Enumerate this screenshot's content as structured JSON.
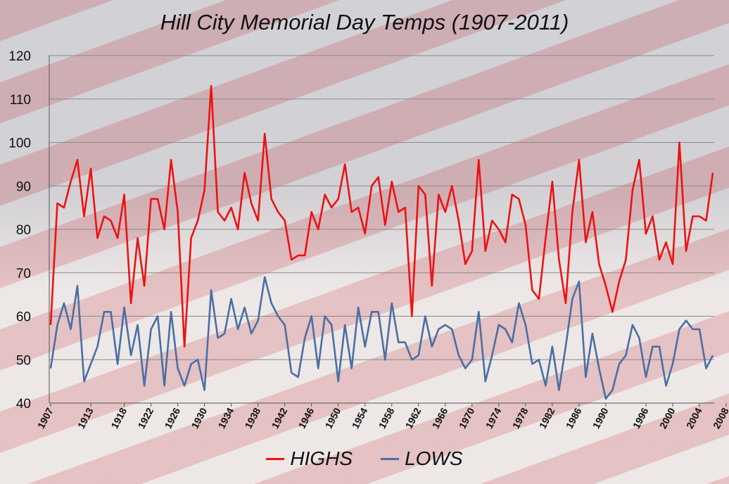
{
  "chart_data": {
    "type": "line",
    "title": "Hill City Memorial Day Temps (1907-2011)",
    "xlabel": "",
    "ylabel": "",
    "ylim": [
      40,
      120
    ],
    "yticks": [
      "40",
      "50",
      "60",
      "70",
      "80",
      "90",
      "100",
      "110",
      "120"
    ],
    "grid": true,
    "legend": "bottom",
    "xtick_labels": [
      "1907",
      "1913",
      "1918",
      "1922",
      "1926",
      "1930",
      "1934",
      "1938",
      "1942",
      "1946",
      "1950",
      "1954",
      "1958",
      "1962",
      "1966",
      "1970",
      "1974",
      "1978",
      "1982",
      "1986",
      "1990",
      "1996",
      "2000",
      "2004",
      "2008"
    ],
    "series": [
      {
        "name": "HIGHS",
        "color": "#ee1111",
        "values": [
          58,
          86,
          85,
          91,
          96,
          83,
          94,
          78,
          83,
          82,
          78,
          88,
          63,
          78,
          67,
          87,
          87,
          80,
          96,
          84,
          53,
          78,
          82,
          89,
          113,
          84,
          82,
          85,
          80,
          93,
          86,
          82,
          102,
          87,
          84,
          82,
          73,
          74,
          74,
          84,
          80,
          88,
          85,
          87,
          95,
          84,
          85,
          79,
          90,
          92,
          81,
          91,
          84,
          85,
          60,
          90,
          88,
          67,
          88,
          84,
          90,
          82,
          72,
          75,
          96,
          75,
          82,
          80,
          77,
          88,
          87,
          81,
          66,
          64,
          78,
          91,
          73,
          63,
          84,
          96,
          77,
          84,
          72,
          67,
          61,
          68,
          73,
          89,
          96,
          79,
          83,
          73,
          77,
          72,
          100,
          75,
          83,
          83,
          82,
          93
        ]
      },
      {
        "name": "LOWS",
        "color": "#4a6fa5",
        "values": [
          48,
          58,
          63,
          57,
          67,
          45,
          49,
          53,
          61,
          61,
          49,
          62,
          51,
          58,
          44,
          57,
          60,
          44,
          61,
          48,
          44,
          49,
          50,
          43,
          66,
          55,
          56,
          64,
          57,
          62,
          56,
          59,
          69,
          63,
          60,
          58,
          47,
          46,
          55,
          60,
          48,
          60,
          58,
          45,
          58,
          48,
          62,
          53,
          61,
          61,
          50,
          63,
          54,
          54,
          50,
          51,
          60,
          53,
          57,
          58,
          57,
          51,
          48,
          50,
          61,
          45,
          51,
          58,
          57,
          54,
          63,
          58,
          49,
          50,
          44,
          53,
          43,
          53,
          64,
          68,
          46,
          56,
          48,
          41,
          43,
          49,
          51,
          58,
          55,
          46,
          53,
          53,
          44,
          49,
          57,
          59,
          57,
          57,
          48,
          51
        ]
      }
    ]
  }
}
